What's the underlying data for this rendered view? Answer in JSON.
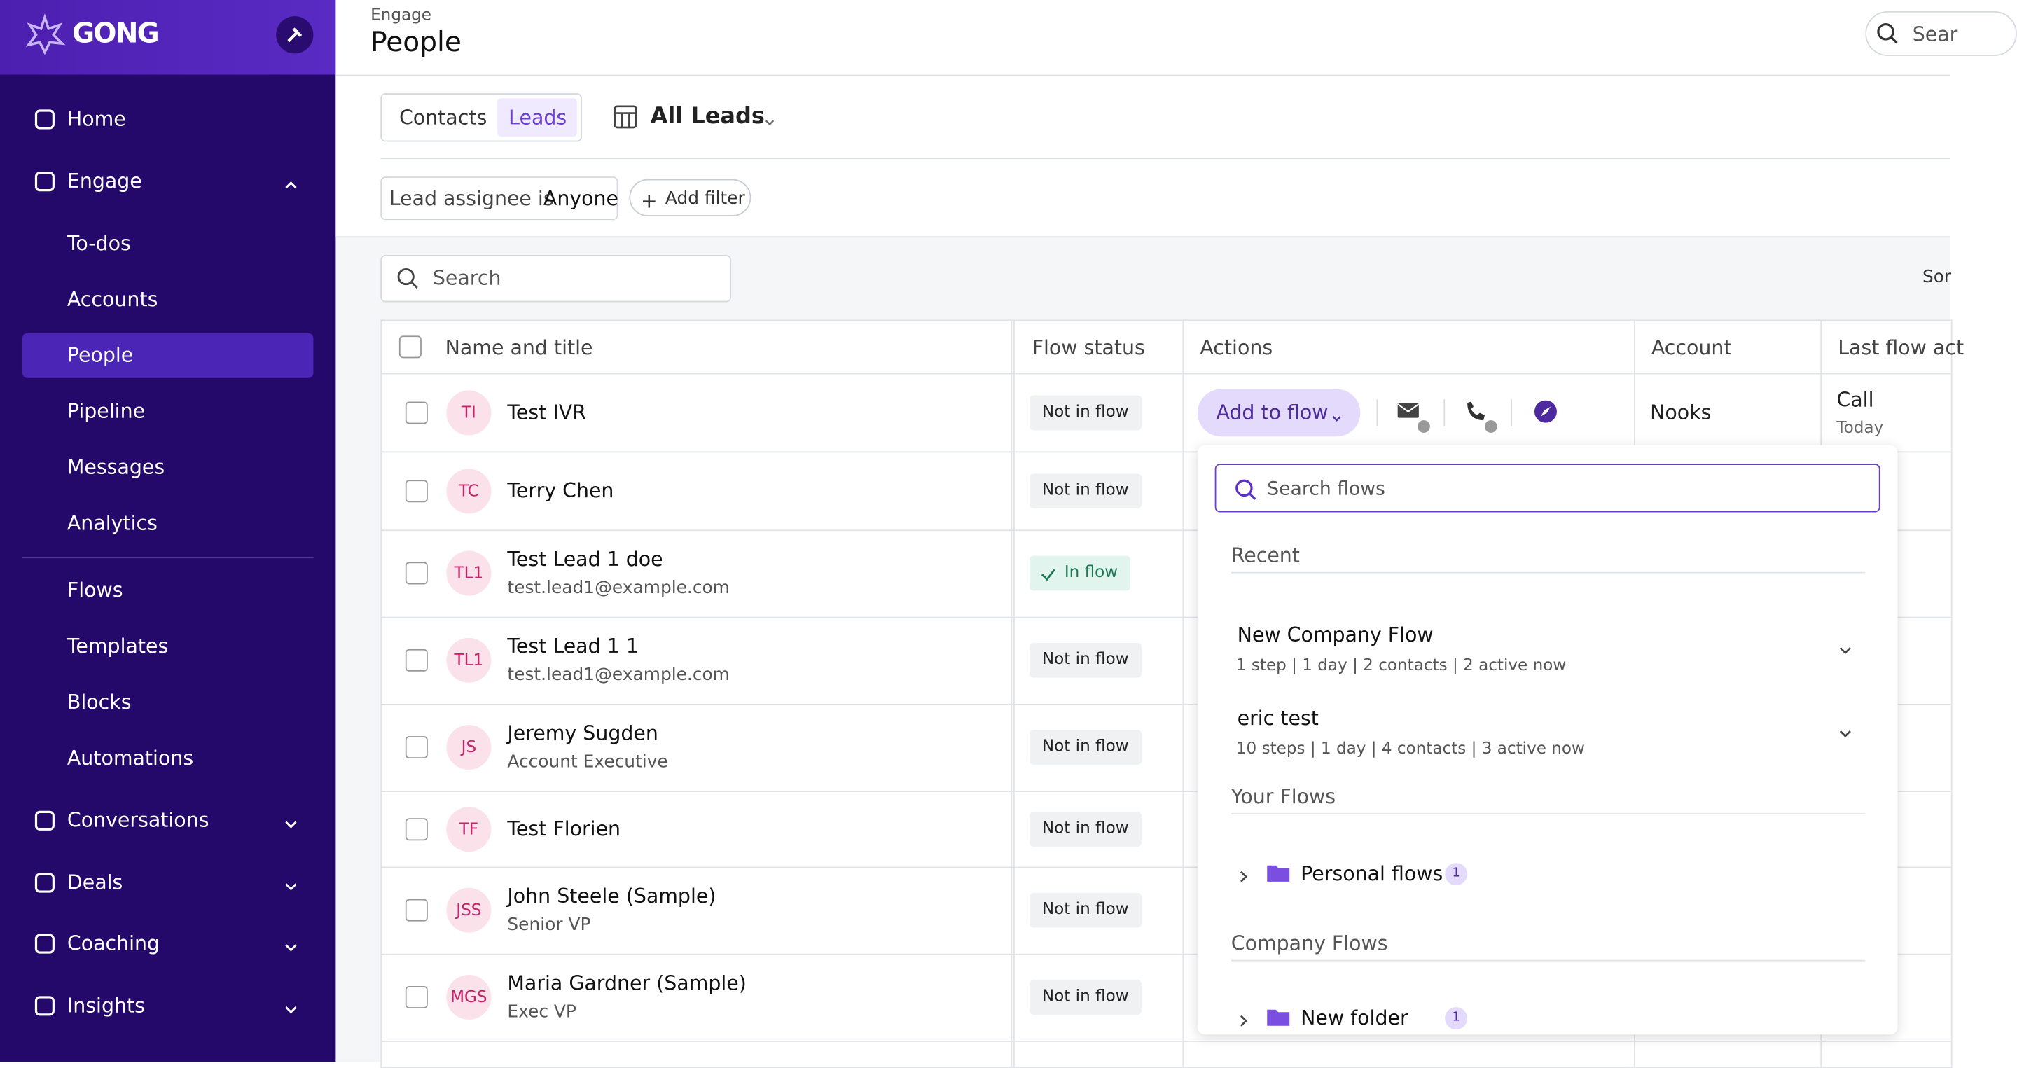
{
  "sidebar": {
    "brand": "GONG",
    "top": [
      "Home",
      "Engage"
    ],
    "engage": [
      "To-dos",
      "Accounts",
      "People",
      "Pipeline",
      "Messages",
      "Analytics"
    ],
    "flows": [
      "Flows",
      "Templates",
      "Blocks",
      "Automations"
    ],
    "bottom": [
      "Conversations",
      "Deals",
      "Coaching",
      "Insights"
    ]
  },
  "header": {
    "section": "Engage",
    "title": "People",
    "search": "Sear"
  },
  "tabs": [
    "Contacts",
    "Leads"
  ],
  "view": "All Leads",
  "filter": {
    "label": "Lead assignee is",
    "value": "Anyone",
    "add": "Add filter"
  },
  "search": "Search",
  "sort": "Sor",
  "table": {
    "columns": [
      "Name and title",
      "Flow status",
      "Actions",
      "Account",
      "Last flow act"
    ],
    "action": "Add to flow",
    "rows": [
      {
        "initials": "TI",
        "name": "Test IVR",
        "status": "Not in flow",
        "account": "Nooks",
        "last_flow": "Call",
        "last_flow_time": "Today"
      },
      {
        "initials": "TC",
        "name": "Terry Chen",
        "status": "Not in flow"
      },
      {
        "initials": "TL1",
        "name": "Test Lead 1 doe",
        "subtitle": "test.lead1@example.com",
        "status": "In flow",
        "in_flow": true
      },
      {
        "initials": "TL1",
        "name": "Test Lead 1 1",
        "subtitle": "test.lead1@example.com",
        "status": "Not in flow"
      },
      {
        "initials": "JS",
        "name": "Jeremy Sugden",
        "subtitle": "Account Executive",
        "status": "Not in flow"
      },
      {
        "initials": "TF",
        "name": "Test Florien",
        "status": "Not in flow"
      },
      {
        "initials": "JSS",
        "name": "John Steele (Sample)",
        "subtitle": "Senior VP",
        "status": "Not in flow"
      },
      {
        "initials": "MGS",
        "name": "Maria Gardner (Sample)",
        "subtitle": "Exec VP",
        "status": "Not in flow"
      }
    ]
  },
  "dropdown": {
    "search": "Search flows",
    "recent": {
      "title": "Recent",
      "flows": [
        {
          "name": "New Company Flow",
          "meta": "1 step | 1 day | 2 contacts | 2 active now"
        },
        {
          "name": "eric test",
          "meta": "10 steps | 1 day | 4 contacts | 3 active now"
        }
      ]
    },
    "your": {
      "title": "Your Flows",
      "folder": "Personal flows",
      "count": 1
    },
    "company": {
      "title": "Company Flows",
      "folder": "New folder",
      "count": 1
    }
  }
}
